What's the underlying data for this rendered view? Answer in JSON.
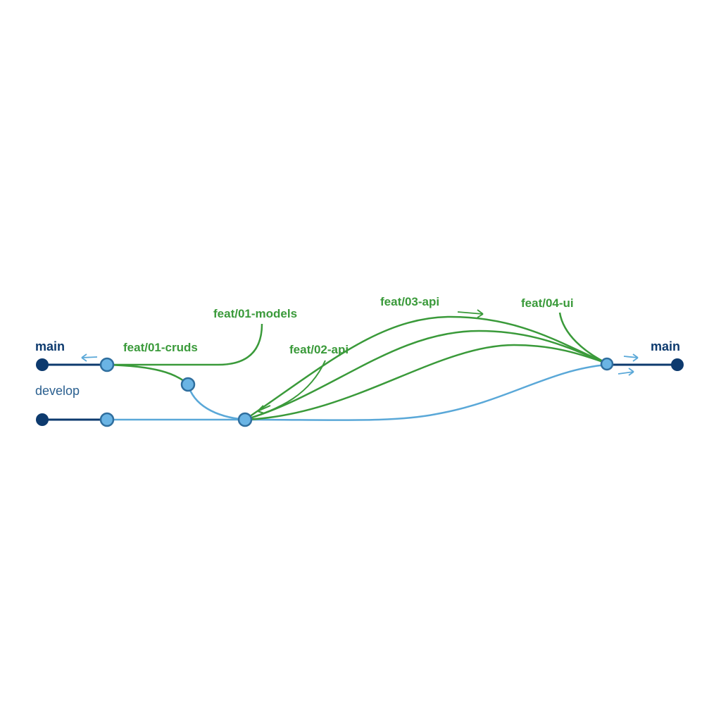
{
  "branches": {
    "main_left": "main",
    "main_right": "main",
    "develop": "develop"
  },
  "feature_branches": [
    "feat/01-models",
    "feat/01-cruds",
    "feat/02-api",
    "feat/03-api",
    "feat/04-ui"
  ],
  "colors": {
    "main": "#0d3a6e",
    "develop": "#5aa8d8",
    "feature": "#3a9a3a",
    "develop_label": "#2a5f8f"
  }
}
